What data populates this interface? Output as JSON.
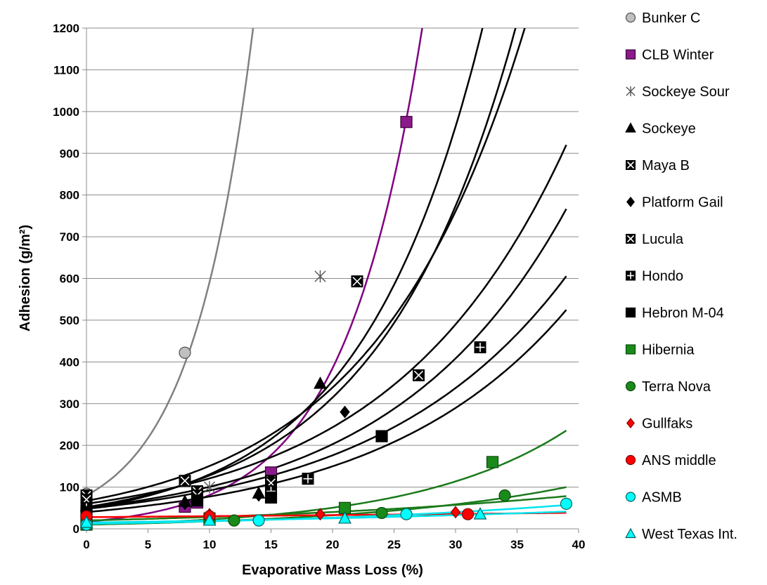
{
  "chart_data": {
    "type": "scatter",
    "xlabel": "Evaporative Mass Loss (%)",
    "ylabel": "Adhesion (g/m²)",
    "xlim": [
      0,
      40
    ],
    "ylim": [
      0,
      1200
    ],
    "xticks": [
      "0",
      "5",
      "10",
      "15",
      "20",
      "25",
      "30",
      "35",
      "40"
    ],
    "yticks": [
      "0",
      "100",
      "200",
      "300",
      "400",
      "500",
      "600",
      "700",
      "800",
      "900",
      "1000",
      "1100",
      "1200"
    ],
    "grid": "horizontal",
    "legend_position": "right",
    "series": [
      {
        "name": "Bunker C",
        "marker": "circle",
        "fill": "#c0c0c0",
        "stroke": "#505050",
        "line_color": "#808080",
        "points": [
          [
            0,
            84
          ],
          [
            8,
            422
          ]
        ],
        "fit": {
          "a": 80,
          "b": 0.2
        }
      },
      {
        "name": "CLB Winter",
        "marker": "square",
        "fill": "#8b1a8b",
        "stroke": "#3a003a",
        "line_color": "#800080",
        "points": [
          [
            0,
            20
          ],
          [
            8,
            53
          ],
          [
            9,
            63
          ],
          [
            15,
            135
          ],
          [
            26,
            975
          ]
        ],
        "fit": {
          "a": 17,
          "b": 0.156
        }
      },
      {
        "name": "Sockeye Sour",
        "marker": "asterisk",
        "fill": "#ffffff",
        "stroke": "#555555",
        "line_color": "#000000",
        "points": [
          [
            0,
            40
          ],
          [
            8,
            115
          ],
          [
            10,
            100
          ],
          [
            15,
            115
          ],
          [
            19,
            605
          ]
        ],
        "fit": {
          "a": 48,
          "b": 0.1
        }
      },
      {
        "name": "Sockeye",
        "marker": "triangle",
        "fill": "#000000",
        "stroke": "#000000",
        "line_color": "#000000",
        "points": [
          [
            0,
            55
          ],
          [
            8,
            65
          ],
          [
            14,
            85
          ],
          [
            19,
            348
          ]
        ],
        "fit": {
          "a": 52,
          "b": 0.09
        }
      },
      {
        "name": "Maya B",
        "marker": "xsquare",
        "fill": "#ffffff",
        "stroke": "#000000",
        "line_color": "#000000",
        "points": [
          [
            0,
            80
          ],
          [
            8,
            115
          ],
          [
            9,
            90
          ],
          [
            15,
            115
          ],
          [
            22,
            593
          ]
        ],
        "fit": {
          "a": 67,
          "b": 0.081
        }
      },
      {
        "name": "Platform Gail",
        "marker": "diamond",
        "fill": "#000000",
        "stroke": "#000000",
        "line_color": "#000000",
        "points": [
          [
            0,
            60
          ],
          [
            8,
            60
          ],
          [
            14,
            80
          ],
          [
            21,
            280
          ]
        ],
        "fit": {
          "a": 50,
          "b": 0.07
        }
      },
      {
        "name": "Lucula",
        "marker": "xsquare",
        "fill": "#ffffff",
        "stroke": "#000000",
        "line_color": "#000000",
        "points": [
          [
            0,
            70
          ],
          [
            9,
            80
          ],
          [
            15,
            110
          ],
          [
            27,
            368
          ]
        ],
        "fit": {
          "a": 60,
          "b": 0.07
        }
      },
      {
        "name": "Hondo",
        "marker": "plussquare",
        "fill": "#000000",
        "stroke": "#000000",
        "line_color": "#000000",
        "points": [
          [
            0,
            50
          ],
          [
            15,
            90
          ],
          [
            18,
            120
          ],
          [
            32,
            435
          ]
        ],
        "fit": {
          "a": 48,
          "b": 0.065
        }
      },
      {
        "name": "Hebron M-04",
        "marker": "square",
        "fill": "#000000",
        "stroke": "#000000",
        "line_color": "#000000",
        "points": [
          [
            0,
            40
          ],
          [
            9,
            68
          ],
          [
            15,
            75
          ],
          [
            24,
            222
          ]
        ],
        "fit": {
          "a": 40,
          "b": 0.066
        }
      },
      {
        "name": "Hibernia",
        "marker": "square",
        "fill": "#1a8a1a",
        "stroke": "#0a4a0a",
        "line_color": "#1a7a1a",
        "points": [
          [
            0,
            10
          ],
          [
            10,
            25
          ],
          [
            21,
            50
          ],
          [
            33,
            160
          ]
        ],
        "fit": {
          "a": 10,
          "b": 0.081
        }
      },
      {
        "name": "Terra Nova",
        "marker": "circle",
        "fill": "#1a8a1a",
        "stroke": "#0a4a0a",
        "line_color": "#1a7a1a",
        "points": [
          [
            0,
            10
          ],
          [
            12,
            20
          ],
          [
            24,
            38
          ],
          [
            34,
            80
          ]
        ],
        "fit": {
          "a": 10,
          "b": 0.059
        }
      },
      {
        "name": "Gullfaks",
        "marker": "diamond",
        "fill": "#ff0000",
        "stroke": "#800000",
        "line_color": "#1a7a1a",
        "points": [
          [
            0,
            20
          ],
          [
            10,
            35
          ],
          [
            19,
            35
          ],
          [
            30,
            40
          ]
        ],
        "fit": {
          "a": 20,
          "b": 0.035
        }
      },
      {
        "name": "ANS middle",
        "marker": "circle",
        "fill": "#ff0000",
        "stroke": "#800000",
        "line_color": "#ff0000",
        "points": [
          [
            0,
            30
          ],
          [
            10,
            30
          ],
          [
            31,
            35
          ]
        ],
        "fit": {
          "a": 28,
          "b": 0.008
        }
      },
      {
        "name": "ASMB",
        "marker": "circle",
        "fill": "#00ffff",
        "stroke": "#006060",
        "line_color": "#00e5ee",
        "points": [
          [
            0,
            10
          ],
          [
            14,
            20
          ],
          [
            26,
            35
          ],
          [
            39,
            60
          ]
        ],
        "fit": {
          "a": 12,
          "b": 0.04
        }
      },
      {
        "name": "West Texas Int.",
        "marker": "triangle",
        "fill": "#00ffff",
        "stroke": "#006060",
        "line_color": "#00e5ee",
        "points": [
          [
            0,
            15
          ],
          [
            10,
            20
          ],
          [
            21,
            25
          ],
          [
            32,
            35
          ]
        ],
        "fit": {
          "a": 15,
          "b": 0.026
        }
      }
    ]
  }
}
